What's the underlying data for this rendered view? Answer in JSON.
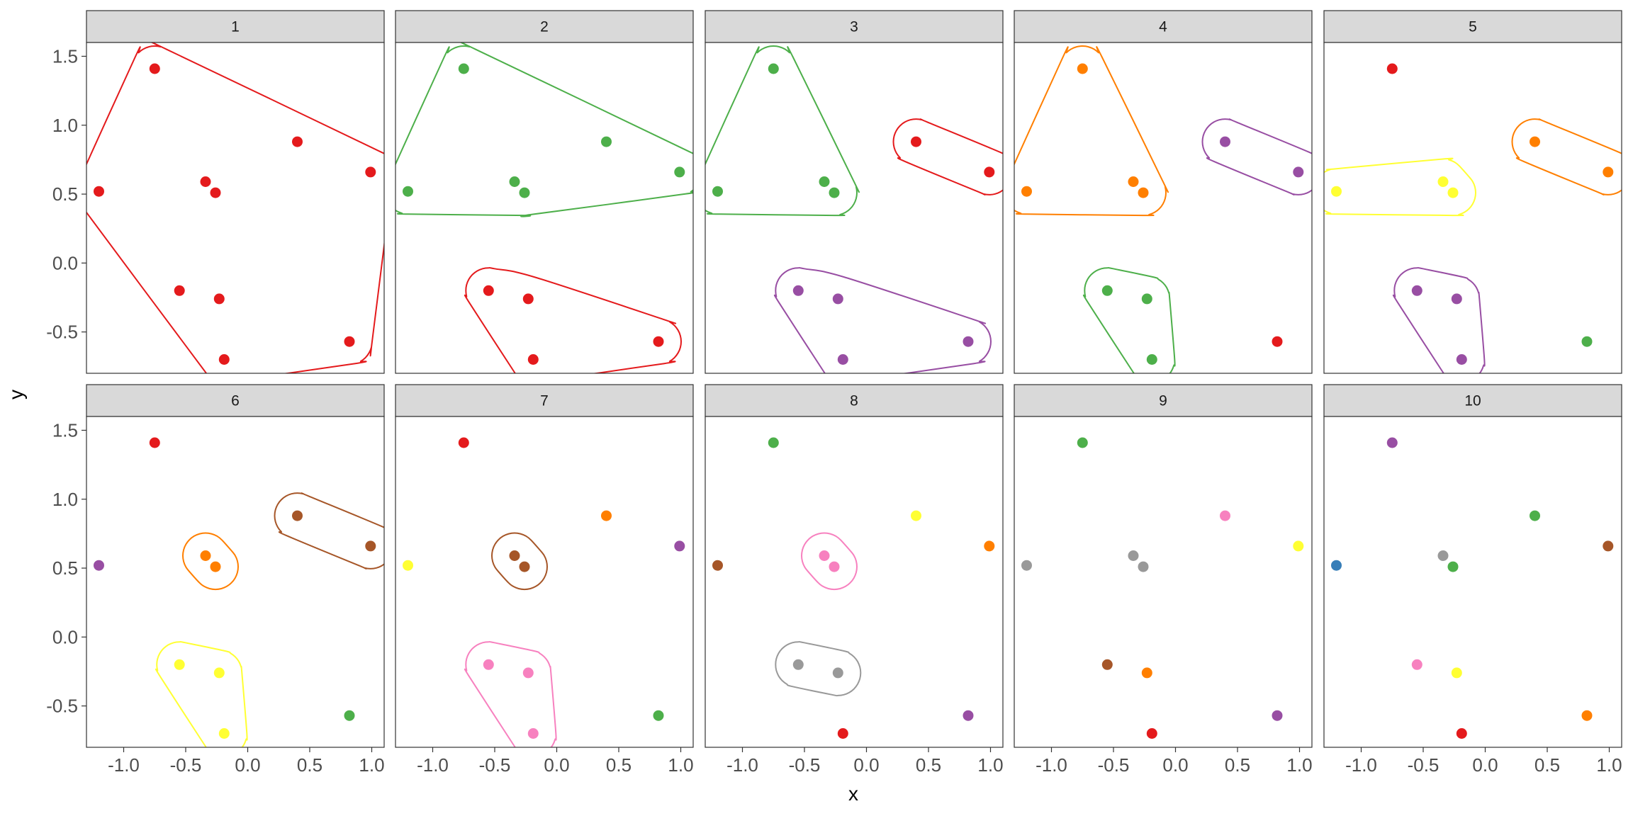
{
  "chart_data": {
    "type": "scatter",
    "facets": [
      "1",
      "2",
      "3",
      "4",
      "5",
      "6",
      "7",
      "8",
      "9",
      "10"
    ],
    "xlabel": "x",
    "ylabel": "y",
    "xlim": [
      -1.3,
      1.1
    ],
    "ylim": [
      -0.8,
      1.6
    ],
    "x_ticks": [
      -1.0,
      -0.5,
      0.0,
      0.5,
      1.0
    ],
    "x_tick_labels": [
      "-1.0",
      "-0.5",
      "0.0",
      "0.5",
      "1.0"
    ],
    "y_ticks": [
      -0.5,
      0.0,
      0.5,
      1.0,
      1.5
    ],
    "y_tick_labels": [
      "-0.5",
      "0.0",
      "0.5",
      "1.0",
      "1.5"
    ],
    "points": [
      {
        "x": -0.75,
        "y": 1.41
      },
      {
        "x": 0.4,
        "y": 0.88
      },
      {
        "x": 0.99,
        "y": 0.66
      },
      {
        "x": -1.2,
        "y": 0.52
      },
      {
        "x": -0.34,
        "y": 0.59
      },
      {
        "x": -0.26,
        "y": 0.51
      },
      {
        "x": -0.55,
        "y": -0.2
      },
      {
        "x": -0.23,
        "y": -0.26
      },
      {
        "x": -0.19,
        "y": -0.7
      },
      {
        "x": 0.82,
        "y": -0.57
      }
    ],
    "colors": {
      "red": "#E41A1C",
      "blue": "#377EB8",
      "green": "#4DAF4A",
      "purple": "#984EA3",
      "orange": "#FF7F00",
      "yellow": "#FFFF33",
      "brown": "#A65628",
      "pink": "#F781BF",
      "grey": "#999999"
    },
    "panels": [
      {
        "label": "1",
        "point_colors": [
          "red",
          "red",
          "red",
          "red",
          "red",
          "red",
          "red",
          "red",
          "red",
          "red"
        ],
        "hulls": [
          {
            "color": "red",
            "points": [
              0,
              1,
              2,
              3,
              4,
              5,
              6,
              7,
              8,
              9
            ]
          }
        ]
      },
      {
        "label": "2",
        "point_colors": [
          "green",
          "green",
          "green",
          "green",
          "green",
          "green",
          "red",
          "red",
          "red",
          "red"
        ],
        "hulls": [
          {
            "color": "green",
            "points": [
              0,
              1,
              2,
              3,
              4,
              5
            ]
          },
          {
            "color": "red",
            "points": [
              6,
              7,
              8,
              9
            ]
          }
        ]
      },
      {
        "label": "3",
        "point_colors": [
          "green",
          "red",
          "red",
          "green",
          "green",
          "green",
          "purple",
          "purple",
          "purple",
          "purple"
        ],
        "hulls": [
          {
            "color": "green",
            "points": [
              0,
              3,
              4,
              5
            ]
          },
          {
            "color": "red",
            "points": [
              1,
              2
            ]
          },
          {
            "color": "purple",
            "points": [
              6,
              7,
              8,
              9
            ]
          }
        ]
      },
      {
        "label": "4",
        "point_colors": [
          "orange",
          "purple",
          "purple",
          "orange",
          "orange",
          "orange",
          "green",
          "green",
          "green",
          "red"
        ],
        "hulls": [
          {
            "color": "orange",
            "points": [
              0,
              3,
              4,
              5
            ]
          },
          {
            "color": "purple",
            "points": [
              1,
              2
            ]
          },
          {
            "color": "green",
            "points": [
              6,
              7,
              8
            ]
          }
        ]
      },
      {
        "label": "5",
        "point_colors": [
          "red",
          "orange",
          "orange",
          "yellow",
          "yellow",
          "yellow",
          "purple",
          "purple",
          "purple",
          "green"
        ],
        "hulls": [
          {
            "color": "orange",
            "points": [
              1,
              2
            ]
          },
          {
            "color": "yellow",
            "points": [
              3,
              4,
              5
            ]
          },
          {
            "color": "purple",
            "points": [
              6,
              7,
              8
            ]
          }
        ]
      },
      {
        "label": "6",
        "point_colors": [
          "red",
          "brown",
          "brown",
          "purple",
          "orange",
          "orange",
          "yellow",
          "yellow",
          "yellow",
          "green"
        ],
        "hulls": [
          {
            "color": "brown",
            "points": [
              1,
              2
            ]
          },
          {
            "color": "orange",
            "points": [
              4,
              5
            ]
          },
          {
            "color": "yellow",
            "points": [
              6,
              7,
              8
            ]
          }
        ]
      },
      {
        "label": "7",
        "point_colors": [
          "red",
          "orange",
          "purple",
          "yellow",
          "brown",
          "brown",
          "pink",
          "pink",
          "pink",
          "green"
        ],
        "hulls": [
          {
            "color": "brown",
            "points": [
              4,
              5
            ]
          },
          {
            "color": "pink",
            "points": [
              6,
              7,
              8
            ]
          }
        ]
      },
      {
        "label": "8",
        "point_colors": [
          "green",
          "yellow",
          "orange",
          "brown",
          "pink",
          "pink",
          "grey",
          "grey",
          "red",
          "purple"
        ],
        "hulls": [
          {
            "color": "pink",
            "points": [
              4,
              5
            ]
          },
          {
            "color": "grey",
            "points": [
              6,
              7
            ]
          }
        ]
      },
      {
        "label": "9",
        "point_colors": [
          "green",
          "pink",
          "yellow",
          "grey",
          "grey",
          "grey",
          "brown",
          "orange",
          "red",
          "purple"
        ],
        "hulls": []
      },
      {
        "label": "10",
        "point_colors": [
          "purple",
          "green",
          "brown",
          "blue",
          "grey",
          "green",
          "pink",
          "yellow",
          "red",
          "orange"
        ],
        "hulls": []
      }
    ]
  }
}
